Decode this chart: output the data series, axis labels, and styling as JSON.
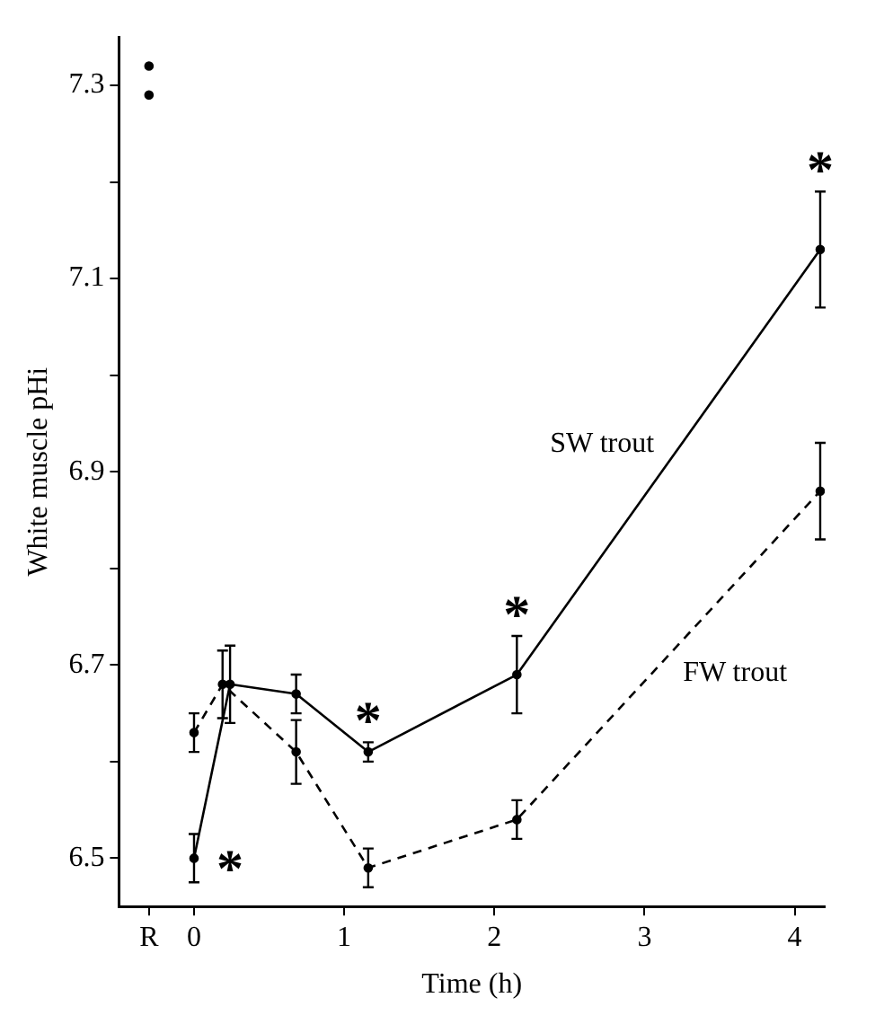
{
  "chart_data": {
    "type": "line",
    "xlabel": "Time (h)",
    "ylabel": "White muscle pHi",
    "xlim": [
      -0.5,
      4.2
    ],
    "xticks": [
      {
        "value": -0.3,
        "label": "R"
      },
      0,
      1,
      2,
      3,
      4
    ],
    "ylim": [
      6.45,
      7.35
    ],
    "yticks": [
      6.5,
      {
        "value": 6.6,
        "label": null
      },
      6.7,
      {
        "value": 6.8,
        "label": null
      },
      6.9,
      {
        "value": 7.0,
        "label": null
      },
      7.1,
      {
        "value": 7.2,
        "label": null
      },
      7.3
    ],
    "grid": false,
    "legend": false,
    "marker": "circle",
    "series": [
      {
        "name": "SW trout",
        "color": "#000000",
        "line_style": "solid",
        "x": [
          0,
          0.24,
          0.68,
          1.16,
          2.15,
          4.17
        ],
        "values": [
          6.5,
          6.68,
          6.67,
          6.61,
          6.69,
          7.13
        ],
        "errors": [
          0.025,
          0.04,
          0.02,
          0.01,
          0.04,
          0.06
        ]
      },
      {
        "name": "FW trout",
        "color": "#000000",
        "line_style": "dashed",
        "x": [
          0,
          0.19,
          0.68,
          1.16,
          2.15,
          4.17
        ],
        "values": [
          6.63,
          6.68,
          6.61,
          6.49,
          6.54,
          6.88
        ],
        "errors": [
          0.02,
          0.035,
          0.033,
          0.02,
          0.02,
          0.05
        ]
      },
      {
        "type": "scatter",
        "color": "#000000",
        "x": [
          -0.3,
          -0.3
        ],
        "values": [
          7.32,
          7.29
        ]
      }
    ],
    "annotations": [
      {
        "text": "*",
        "x": 0,
        "y": 6.5
      },
      {
        "text": "*",
        "x": 1.16,
        "y": 6.61
      },
      {
        "text": "*",
        "x": 2.15,
        "y": 6.69
      },
      {
        "text": "*",
        "x": 4.17,
        "y": 7.13
      }
    ]
  }
}
